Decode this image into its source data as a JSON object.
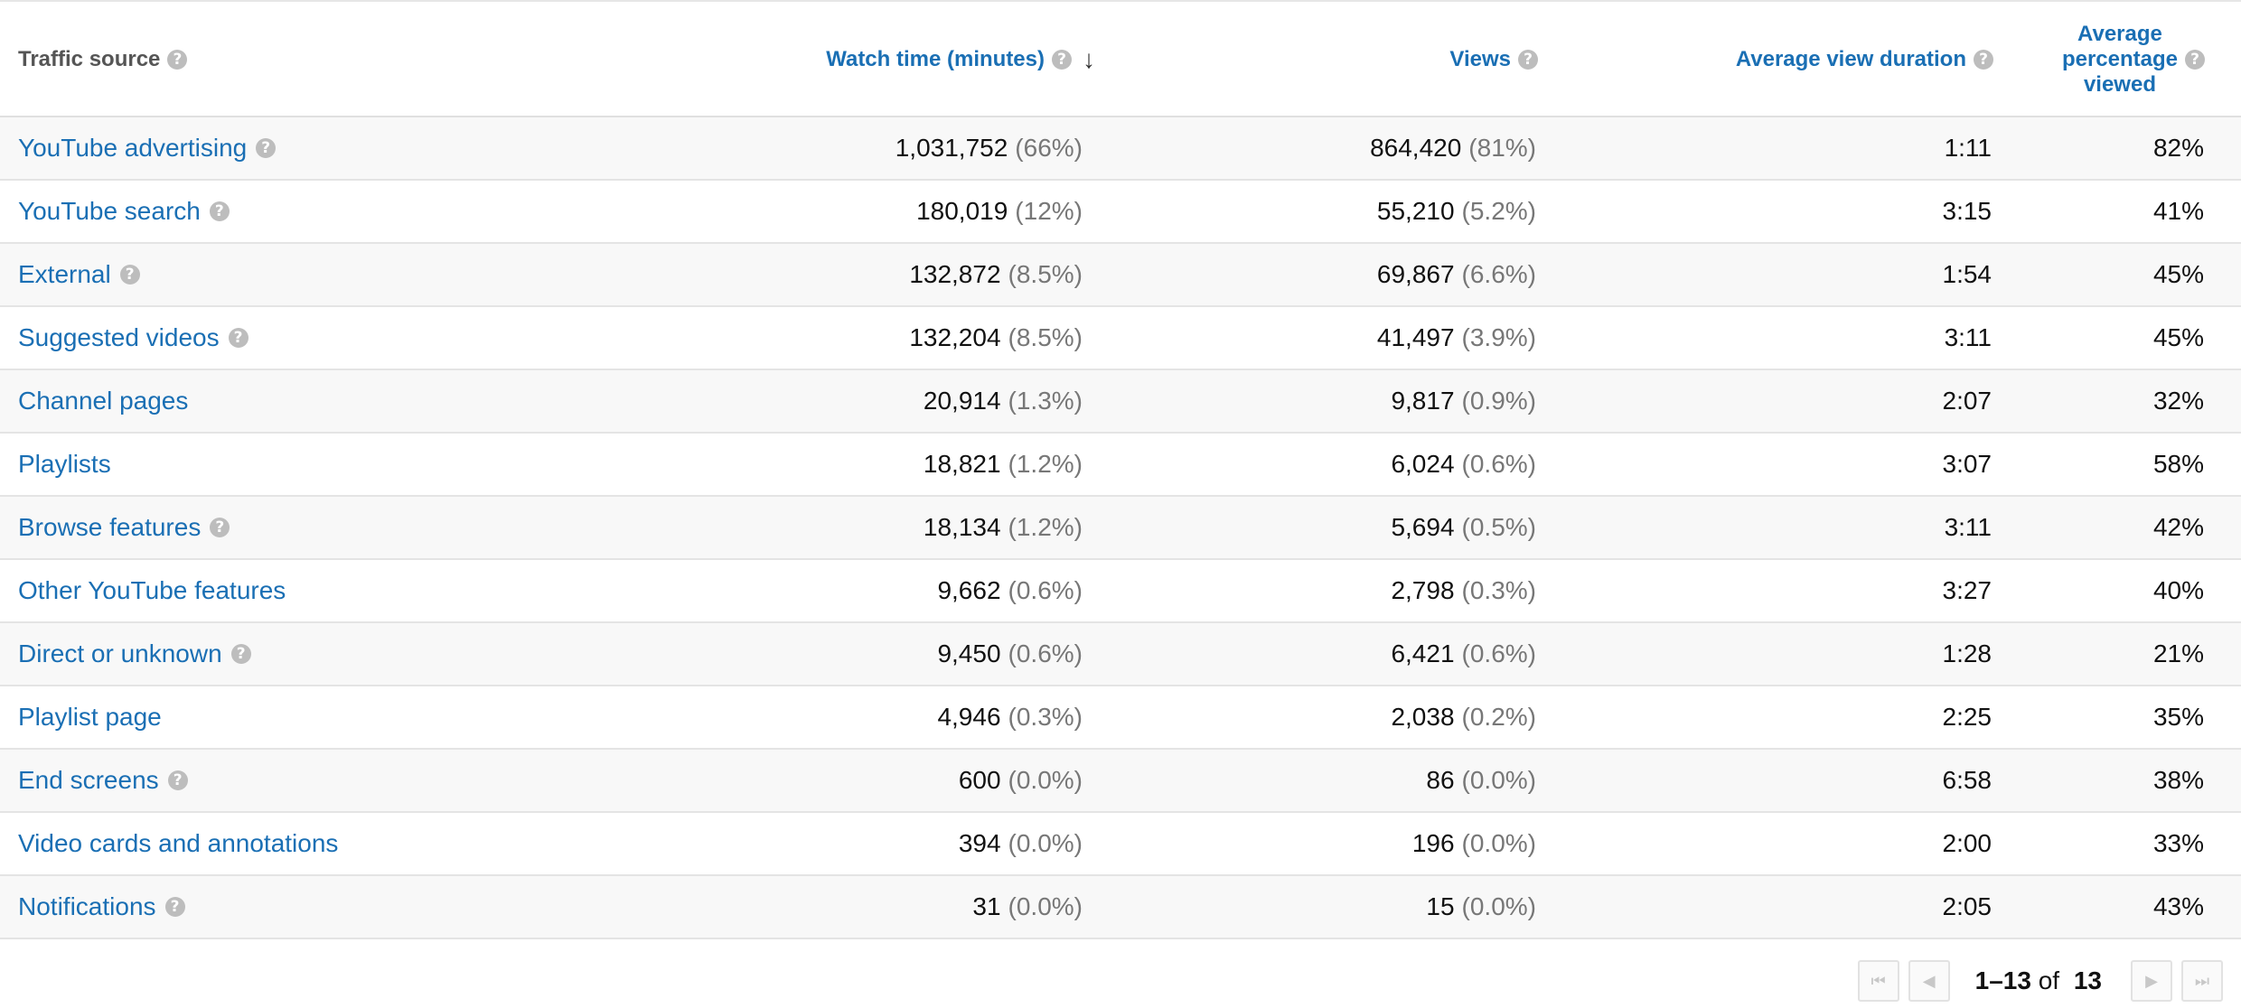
{
  "table": {
    "columns": {
      "source": "Traffic source",
      "watch_time": "Watch time (minutes)",
      "views": "Views",
      "avg_duration": "Average view duration",
      "avg_pct_lines": [
        "Average",
        "percentage",
        "viewed"
      ]
    },
    "sorted_by": "watch_time",
    "sort_direction": "descending",
    "icons": {
      "help": "help-icon",
      "sort": "arrow-down-icon"
    },
    "rows": [
      {
        "source": "YouTube advertising",
        "help": true,
        "watch_time": "1,031,752",
        "watch_pct": "(66%)",
        "views": "864,420",
        "views_pct": "(81%)",
        "avg_duration": "1:11",
        "avg_pct": "82%"
      },
      {
        "source": "YouTube search",
        "help": true,
        "watch_time": "180,019",
        "watch_pct": "(12%)",
        "views": "55,210",
        "views_pct": "(5.2%)",
        "avg_duration": "3:15",
        "avg_pct": "41%"
      },
      {
        "source": "External",
        "help": true,
        "watch_time": "132,872",
        "watch_pct": "(8.5%)",
        "views": "69,867",
        "views_pct": "(6.6%)",
        "avg_duration": "1:54",
        "avg_pct": "45%"
      },
      {
        "source": "Suggested videos",
        "help": true,
        "watch_time": "132,204",
        "watch_pct": "(8.5%)",
        "views": "41,497",
        "views_pct": "(3.9%)",
        "avg_duration": "3:11",
        "avg_pct": "45%"
      },
      {
        "source": "Channel pages",
        "help": false,
        "watch_time": "20,914",
        "watch_pct": "(1.3%)",
        "views": "9,817",
        "views_pct": "(0.9%)",
        "avg_duration": "2:07",
        "avg_pct": "32%"
      },
      {
        "source": "Playlists",
        "help": false,
        "watch_time": "18,821",
        "watch_pct": "(1.2%)",
        "views": "6,024",
        "views_pct": "(0.6%)",
        "avg_duration": "3:07",
        "avg_pct": "58%"
      },
      {
        "source": "Browse features",
        "help": true,
        "watch_time": "18,134",
        "watch_pct": "(1.2%)",
        "views": "5,694",
        "views_pct": "(0.5%)",
        "avg_duration": "3:11",
        "avg_pct": "42%"
      },
      {
        "source": "Other YouTube features",
        "help": false,
        "watch_time": "9,662",
        "watch_pct": "(0.6%)",
        "views": "2,798",
        "views_pct": "(0.3%)",
        "avg_duration": "3:27",
        "avg_pct": "40%"
      },
      {
        "source": "Direct or unknown",
        "help": true,
        "watch_time": "9,450",
        "watch_pct": "(0.6%)",
        "views": "6,421",
        "views_pct": "(0.6%)",
        "avg_duration": "1:28",
        "avg_pct": "21%"
      },
      {
        "source": "Playlist page",
        "help": false,
        "watch_time": "4,946",
        "watch_pct": "(0.3%)",
        "views": "2,038",
        "views_pct": "(0.2%)",
        "avg_duration": "2:25",
        "avg_pct": "35%"
      },
      {
        "source": "End screens",
        "help": true,
        "watch_time": "600",
        "watch_pct": "(0.0%)",
        "views": "86",
        "views_pct": "(0.0%)",
        "avg_duration": "6:58",
        "avg_pct": "38%"
      },
      {
        "source": "Video cards and annotations",
        "help": false,
        "watch_time": "394",
        "watch_pct": "(0.0%)",
        "views": "196",
        "views_pct": "(0.0%)",
        "avg_duration": "2:00",
        "avg_pct": "33%"
      },
      {
        "source": "Notifications",
        "help": true,
        "watch_time": "31",
        "watch_pct": "(0.0%)",
        "views": "15",
        "views_pct": "(0.0%)",
        "avg_duration": "2:05",
        "avg_pct": "43%"
      }
    ]
  },
  "pagination": {
    "range": "1–13",
    "of_label": "of",
    "total": "13",
    "icons": {
      "first": "first-page-icon",
      "prev": "previous-page-icon",
      "next": "next-page-icon",
      "last": "last-page-icon"
    }
  },
  "colors": {
    "link": "#1a6fb4",
    "header_text": "#555555",
    "muted_pct": "#777777",
    "row_alt": "#f8f8f8",
    "border": "#e4e4e4",
    "help_icon": "#bdbdbd"
  }
}
